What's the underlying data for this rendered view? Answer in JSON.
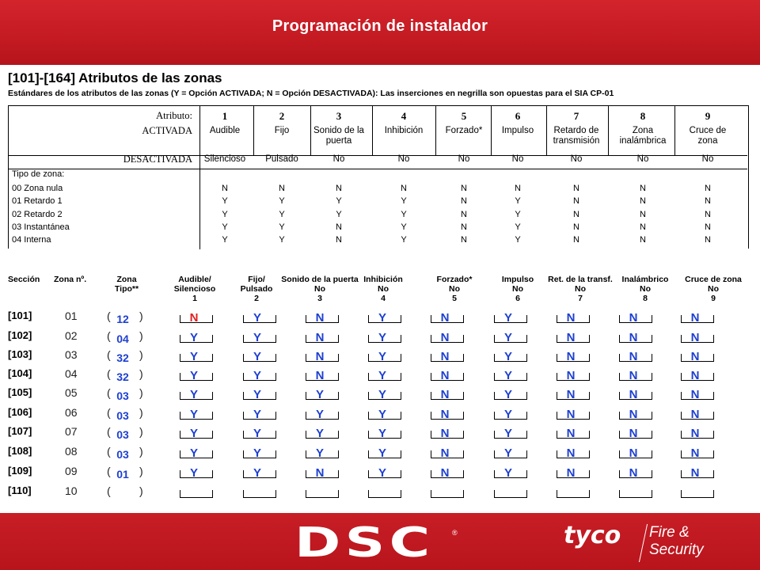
{
  "header": {
    "title": "Programación de instalador"
  },
  "section": {
    "title": "[101]-[164] Atributos de las zonas",
    "subtitle": "Estándares de los atributos de las zonas (Y = Opción ACTIVADA; N = Opción DESACTIVADA): Las inserciones en negrilla son opuestas para el SIA CP-01"
  },
  "attr_table": {
    "label_attr": "Atributo:",
    "label_on": "ACTIVADA",
    "label_off": "DESACTIVADA",
    "label_type": "Tipo de zona:",
    "numbers": [
      "1",
      "2",
      "3",
      "4",
      "5",
      "6",
      "7",
      "8",
      "9"
    ],
    "on": [
      "Audible",
      "Fijo",
      "Sonido de la puerta",
      "Inhibición",
      "Forzado*",
      "Impulso",
      "Retardo de transmisión",
      "Zona inalámbrica",
      "Cruce de zona"
    ],
    "off": [
      "Silencioso",
      "Pulsado",
      "No",
      "No",
      "No",
      "No",
      "No",
      "No",
      "No"
    ],
    "rows": [
      {
        "name": "00  Zona nula",
        "vals": [
          "N",
          "N",
          "N",
          "N",
          "N",
          "N",
          "N",
          "N",
          "N"
        ]
      },
      {
        "name": "01  Retardo 1",
        "vals": [
          "Y",
          "Y",
          "Y",
          "Y",
          "N",
          "Y",
          "N",
          "N",
          "N"
        ]
      },
      {
        "name": "02  Retardo 2",
        "vals": [
          "Y",
          "Y",
          "Y",
          "Y",
          "N",
          "Y",
          "N",
          "N",
          "N"
        ]
      },
      {
        "name": "03 Instantánea",
        "vals": [
          "Y",
          "Y",
          "N",
          "Y",
          "N",
          "Y",
          "N",
          "N",
          "N"
        ]
      },
      {
        "name": "04 Interna",
        "vals": [
          "Y",
          "Y",
          "N",
          "Y",
          "N",
          "Y",
          "N",
          "N",
          "N"
        ]
      }
    ]
  },
  "form": {
    "headers": {
      "seccion": "Sección",
      "zona": "Zona nº.",
      "tipo": [
        "Zona",
        "Tipo**"
      ],
      "cols": [
        {
          "l1": "Audible/",
          "l2": "Silencioso",
          "n": "1"
        },
        {
          "l1": "Fijo/",
          "l2": "Pulsado",
          "n": "2"
        },
        {
          "l1": "Sonido de la puerta",
          "l2": "No",
          "n": "3"
        },
        {
          "l1": "Inhibición",
          "l2": "No",
          "n": "4"
        },
        {
          "l1": "Forzado*",
          "l2": "No",
          "n": "5"
        },
        {
          "l1": "Impulso",
          "l2": "No",
          "n": "6"
        },
        {
          "l1": "Ret. de la transf.",
          "l2": "No",
          "n": "7"
        },
        {
          "l1": "Inalámbrico",
          "l2": "No",
          "n": "8"
        },
        {
          "l1": "Cruce de zona",
          "l2": "No",
          "n": "9"
        }
      ]
    },
    "rows": [
      {
        "sec": "[101]",
        "zone": "01",
        "type": "12",
        "vals": [
          "N",
          "Y",
          "N",
          "Y",
          "N",
          "Y",
          "N",
          "N",
          "N"
        ]
      },
      {
        "sec": "[102]",
        "zone": "02",
        "type": "04",
        "vals": [
          "Y",
          "Y",
          "N",
          "Y",
          "N",
          "Y",
          "N",
          "N",
          "N"
        ]
      },
      {
        "sec": "[103]",
        "zone": "03",
        "type": "32",
        "vals": [
          "Y",
          "Y",
          "N",
          "Y",
          "N",
          "Y",
          "N",
          "N",
          "N"
        ]
      },
      {
        "sec": "[104]",
        "zone": "04",
        "type": "32",
        "vals": [
          "Y",
          "Y",
          "N",
          "Y",
          "N",
          "Y",
          "N",
          "N",
          "N"
        ]
      },
      {
        "sec": "[105]",
        "zone": "05",
        "type": "03",
        "vals": [
          "Y",
          "Y",
          "Y",
          "Y",
          "N",
          "Y",
          "N",
          "N",
          "N"
        ]
      },
      {
        "sec": "[106]",
        "zone": "06",
        "type": "03",
        "vals": [
          "Y",
          "Y",
          "Y",
          "Y",
          "N",
          "Y",
          "N",
          "N",
          "N"
        ]
      },
      {
        "sec": "[107]",
        "zone": "07",
        "type": "03",
        "vals": [
          "Y",
          "Y",
          "Y",
          "Y",
          "N",
          "Y",
          "N",
          "N",
          "N"
        ]
      },
      {
        "sec": "[108]",
        "zone": "08",
        "type": "03",
        "vals": [
          "Y",
          "Y",
          "Y",
          "Y",
          "N",
          "Y",
          "N",
          "N",
          "N"
        ]
      },
      {
        "sec": "[109]",
        "zone": "09",
        "type": "01",
        "vals": [
          "Y",
          "Y",
          "N",
          "Y",
          "N",
          "Y",
          "N",
          "N",
          "N"
        ]
      },
      {
        "sec": "[110]",
        "zone": "10",
        "type": "",
        "vals": [
          "",
          "",
          "",
          "",
          "",
          "",
          "",
          "",
          ""
        ]
      }
    ],
    "paren_open": "(",
    "paren_close": ")"
  },
  "footer": {
    "logo": "DSC",
    "reg": "®",
    "brand": "tyco",
    "brand_tag_1": "Fire &",
    "brand_tag_2": "Security"
  },
  "colors": {
    "header_red": "#c41a22",
    "value_blue": "#1d3fd0",
    "value_red": "#e02020"
  }
}
